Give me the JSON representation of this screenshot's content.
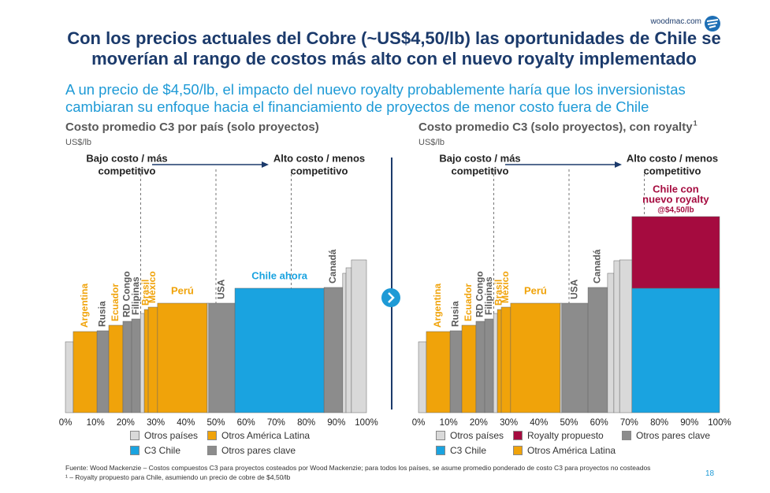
{
  "header": {
    "site": "woodmac.com",
    "title": "Con los precios actuales del Cobre (~US$4,50/lb) las oportunidades de Chile se moverían al rango de costos más alto con el nuevo royalty implementado",
    "subtitle": "A un precio de $4,50/lb, el impacto del nuevo royalty probablemente haría que los inversionistas cambiaran su enfoque hacia el financiamiento de proyectos de menor costo fuera de Chile"
  },
  "chart_data": [
    {
      "type": "cost-curve",
      "title": "Costo promedio C3 por país (solo proyectos)",
      "unit": "US$/lb",
      "note_low": [
        "Bajo costo / más",
        "competitivo"
      ],
      "note_high": [
        "Alto costo / menos",
        "competitivo"
      ],
      "xlim": [
        0,
        100
      ],
      "xticks": [
        {
          "value": 0,
          "label": "0%"
        },
        {
          "value": 10,
          "label": "10%"
        },
        {
          "value": 20,
          "label": "20%"
        },
        {
          "value": 30,
          "label": "30%"
        },
        {
          "value": 40,
          "label": "40%"
        },
        {
          "value": 50,
          "label": "50%"
        },
        {
          "value": 60,
          "label": "60%"
        },
        {
          "value": 70,
          "label": "70%"
        },
        {
          "value": 80,
          "label": "80%"
        },
        {
          "value": 90,
          "label": "90%"
        },
        {
          "value": 100,
          "label": "100%"
        }
      ],
      "ylim": [
        0,
        250
      ],
      "quartiles": [
        25,
        50,
        75
      ],
      "bins": [
        0,
        2.6,
        10.5,
        14.4,
        19.1,
        22,
        24.9,
        26.2,
        27.5,
        30.6,
        47.1,
        47.6,
        56.3,
        85.9,
        92.1,
        93.2,
        95,
        100
      ],
      "categories": [
        null,
        "Argentina",
        "Rusia",
        "Ecuador",
        "RD Congo",
        "Filipinas",
        null,
        "Brasil",
        "México",
        "Perú",
        null,
        "USA",
        "Chile ahora",
        "Canadá",
        null,
        null,
        null
      ],
      "series": [
        {
          "name": "Otros países",
          "color": "#d9d9d9",
          "values": [
            90,
            null,
            null,
            null,
            null,
            null,
            126,
            null,
            null,
            null,
            139,
            null,
            null,
            null,
            177,
            184,
            194
          ]
        },
        {
          "name": "Otros América Latina",
          "color": "#f0a30a",
          "values": [
            null,
            103,
            null,
            111,
            null,
            null,
            null,
            131,
            134,
            139,
            null,
            null,
            null,
            null,
            null,
            null,
            null
          ]
        },
        {
          "name": "C3 Chile",
          "color": "#1aa3e0",
          "values": [
            null,
            null,
            null,
            null,
            null,
            null,
            null,
            null,
            null,
            null,
            null,
            null,
            158,
            null,
            null,
            null,
            null
          ]
        },
        {
          "name": "Otros pares clave",
          "color": "#8c8c8c",
          "label_color": "#595959",
          "values": [
            null,
            null,
            104,
            null,
            116,
            119,
            null,
            null,
            null,
            null,
            null,
            139,
            null,
            159,
            null,
            null,
            null
          ]
        }
      ]
    },
    {
      "type": "cost-curve",
      "title": "Costo promedio C3 (solo proyectos), con royalty",
      "title_note": "1",
      "unit": "US$/lb",
      "note_low": [
        "Bajo costo / más",
        "competitivo"
      ],
      "note_high": [
        "Alto costo / menos",
        "competitivo"
      ],
      "xlim": [
        0,
        100
      ],
      "xticks": [
        {
          "value": 0,
          "label": "0%"
        },
        {
          "value": 10,
          "label": "10%"
        },
        {
          "value": 20,
          "label": "20%"
        },
        {
          "value": 30,
          "label": "30%"
        },
        {
          "value": 40,
          "label": "40%"
        },
        {
          "value": 50,
          "label": "50%"
        },
        {
          "value": 60,
          "label": "60%"
        },
        {
          "value": 70,
          "label": "70%"
        },
        {
          "value": 80,
          "label": "80%"
        },
        {
          "value": 90,
          "label": "90%"
        },
        {
          "value": 100,
          "label": "100%"
        }
      ],
      "ylim": [
        0,
        250
      ],
      "quartiles": [
        25,
        50,
        75
      ],
      "bins": [
        0,
        2.6,
        10.5,
        14.4,
        19.1,
        22,
        24.9,
        26.2,
        27.5,
        30.6,
        47.1,
        47.6,
        56.3,
        62.8,
        64.9,
        66.8,
        70.9,
        100
      ],
      "categories": [
        null,
        "Argentina",
        "Rusia",
        "Ecuador",
        "RD Congo",
        "Filipinas",
        null,
        "Brasil",
        "México",
        "Perú",
        null,
        "USA",
        "Canadá",
        null,
        null,
        null,
        null
      ],
      "annotation": {
        "lines": [
          "Chile con",
          "nuevo royalty"
        ],
        "note": "@$4,50/lb"
      },
      "series": [
        {
          "name": "Otros países",
          "color": "#d9d9d9",
          "values": [
            90,
            null,
            null,
            null,
            null,
            null,
            126,
            null,
            null,
            null,
            139,
            null,
            null,
            177,
            193,
            194,
            null
          ]
        },
        {
          "name": "Royalty propuesto",
          "color": "#a50b3f",
          "stacked": true,
          "values": [
            null,
            null,
            null,
            null,
            null,
            null,
            null,
            null,
            null,
            null,
            null,
            null,
            null,
            null,
            null,
            null,
            91
          ]
        },
        {
          "name": "Otros pares clave",
          "color": "#8c8c8c",
          "label_color": "#595959",
          "values": [
            null,
            null,
            104,
            null,
            116,
            119,
            null,
            null,
            null,
            null,
            null,
            139,
            159,
            null,
            null,
            null,
            null
          ]
        },
        {
          "name": "C3 Chile",
          "color": "#1aa3e0",
          "values": [
            null,
            null,
            null,
            null,
            null,
            null,
            null,
            null,
            null,
            null,
            null,
            null,
            null,
            null,
            null,
            null,
            158
          ]
        },
        {
          "name": "Otros América Latina",
          "color": "#f0a30a",
          "values": [
            null,
            103,
            null,
            111,
            null,
            null,
            null,
            131,
            134,
            139,
            null,
            null,
            null,
            null,
            null,
            null,
            null
          ]
        }
      ]
    }
  ],
  "footnotes": [
    "Fuente: Wood Mackenzie – Costos compuestos C3 para proyectos costeados por Wood Mackenzie; para todos los países, se asume promedio ponderado de costo C3 para proyectos no costeados",
    "¹ – Royalty propuesto para Chile, asumiendo un precio de cobre de $4,50/lb"
  ],
  "page_number": "18"
}
